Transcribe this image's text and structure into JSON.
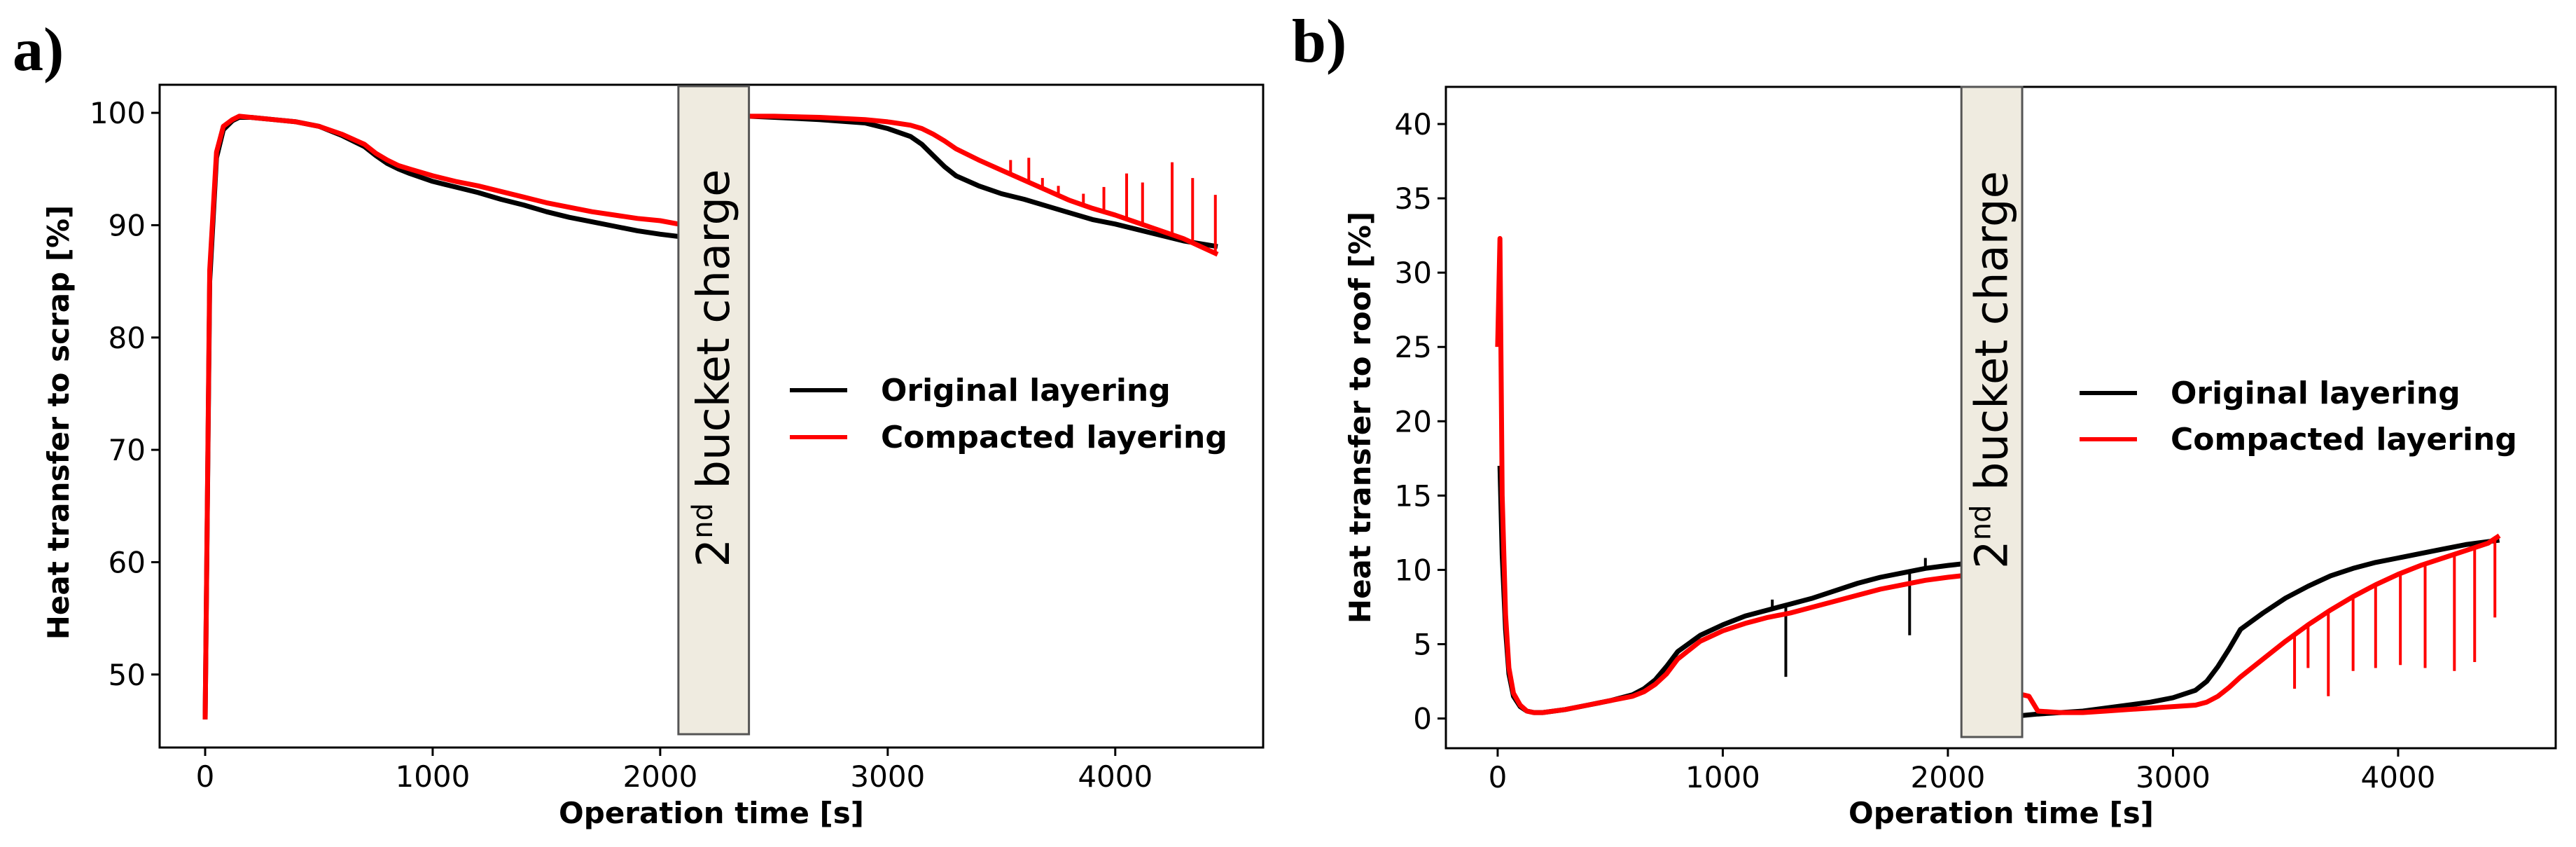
{
  "colors": {
    "original": "#000000",
    "compacted": "#ff0000",
    "bucket_fill": "#efebe0",
    "bucket_stroke": "#555555"
  },
  "chart_data": [
    {
      "type": "line",
      "panel_label": "a)",
      "xlabel": "Operation time [s]",
      "ylabel": "Heat transfer to scrap [%]",
      "xlim": [
        -200,
        4650
      ],
      "ylim": [
        43.5,
        102.5
      ],
      "xticks": [
        0,
        1000,
        2000,
        3000,
        4000
      ],
      "yticks": [
        50,
        60,
        70,
        80,
        90,
        100
      ],
      "legend_position": "center-right",
      "annotation": {
        "main": "2",
        "sup": "nd",
        "rest": " bucket charge",
        "x_range": [
          2080,
          2390
        ]
      },
      "series": [
        {
          "name": "Original layering",
          "color_key": "original",
          "segments": [
            {
              "x": [
                0,
                20,
                50,
                80,
                120,
                150,
                200,
                300,
                400,
                500,
                600,
                700,
                750,
                800,
                850,
                900,
                1000,
                1100,
                1200,
                1300,
                1400,
                1500,
                1600,
                1700,
                1800,
                1900,
                2000,
                2080
              ],
              "y": [
                46,
                85,
                96,
                98.5,
                99.3,
                99.6,
                99.6,
                99.4,
                99.2,
                98.8,
                98,
                97,
                96.2,
                95.5,
                95,
                94.6,
                93.9,
                93.4,
                92.9,
                92.3,
                91.8,
                91.2,
                90.7,
                90.3,
                89.9,
                89.5,
                89.2,
                89
              ]
            },
            {
              "x": [
                2390,
                2500,
                2700,
                2900,
                3000,
                3100,
                3150,
                3200,
                3250,
                3300,
                3400,
                3500,
                3600,
                3700,
                3800,
                3900,
                4000,
                4100,
                4200,
                4300,
                4450
              ],
              "y": [
                99.7,
                99.6,
                99.4,
                99.1,
                98.6,
                97.9,
                97.2,
                96.2,
                95.2,
                94.4,
                93.5,
                92.8,
                92.3,
                91.7,
                91.1,
                90.5,
                90.1,
                89.6,
                89.1,
                88.6,
                88.1
              ]
            }
          ]
        },
        {
          "name": "Compacted layering",
          "color_key": "compacted",
          "segments": [
            {
              "x": [
                0,
                20,
                50,
                80,
                120,
                150,
                200,
                300,
                400,
                500,
                600,
                700,
                750,
                800,
                850,
                900,
                1000,
                1100,
                1200,
                1300,
                1400,
                1500,
                1600,
                1700,
                1800,
                1900,
                2000,
                2080
              ],
              "y": [
                46,
                86,
                96.5,
                98.8,
                99.4,
                99.7,
                99.6,
                99.4,
                99.2,
                98.8,
                98.1,
                97.2,
                96.4,
                95.8,
                95.3,
                95,
                94.4,
                93.9,
                93.5,
                93,
                92.5,
                92,
                91.6,
                91.2,
                90.9,
                90.6,
                90.4,
                90.1
              ]
            },
            {
              "x": [
                2390,
                2500,
                2700,
                2900,
                3000,
                3100,
                3150,
                3200,
                3250,
                3300,
                3400,
                3500,
                3600,
                3700,
                3800,
                3900,
                4000,
                4100,
                4200,
                4300,
                4450
              ],
              "y": [
                99.7,
                99.7,
                99.6,
                99.4,
                99.2,
                98.9,
                98.6,
                98.1,
                97.5,
                96.8,
                95.8,
                94.9,
                94,
                93.1,
                92.2,
                91.5,
                90.9,
                90.2,
                89.5,
                88.8,
                87.4
              ]
            }
          ],
          "spikes": [
            [
              3540,
              95.8
            ],
            [
              3620,
              96
            ],
            [
              3680,
              94.2
            ],
            [
              3750,
              93.5
            ],
            [
              3860,
              92.8
            ],
            [
              3950,
              93.4
            ],
            [
              4050,
              94.6
            ],
            [
              4120,
              93.8
            ],
            [
              4250,
              95.6
            ],
            [
              4340,
              94.2
            ],
            [
              4440,
              92.7
            ]
          ]
        }
      ]
    },
    {
      "type": "line",
      "panel_label": "b)",
      "xlabel": "Operation time [s]",
      "ylabel": "Heat transfer to roof [%]",
      "xlim": [
        -230,
        4700
      ],
      "ylim": [
        -2,
        42.5
      ],
      "xticks": [
        0,
        1000,
        2000,
        3000,
        4000
      ],
      "yticks": [
        0,
        5,
        10,
        15,
        20,
        25,
        30,
        35,
        40
      ],
      "legend_position": "center-right",
      "annotation": {
        "main": "2",
        "sup": "nd",
        "rest": " bucket charge",
        "x_range": [
          2060,
          2330
        ]
      },
      "series": [
        {
          "name": "Original layering",
          "color_key": "original",
          "segments": [
            {
              "x": [
                10,
                20,
                35,
                50,
                70,
                100,
                130,
                160,
                200,
                300,
                400,
                500,
                600,
                650,
                700,
                750,
                800,
                900,
                1000,
                1100,
                1200,
                1300,
                1400,
                1500,
                1600,
                1700,
                1800,
                1900,
                2000,
                2060
              ],
              "y": [
                17,
                11,
                6,
                3,
                1.5,
                0.8,
                0.5,
                0.4,
                0.4,
                0.6,
                0.9,
                1.2,
                1.6,
                2,
                2.6,
                3.5,
                4.5,
                5.6,
                6.3,
                6.9,
                7.3,
                7.7,
                8.1,
                8.6,
                9.1,
                9.5,
                9.8,
                10.1,
                10.3,
                10.4
              ]
            },
            {
              "x": [
                2330,
                2400,
                2500,
                2600,
                2700,
                2800,
                2900,
                3000,
                3100,
                3150,
                3200,
                3250,
                3300,
                3400,
                3500,
                3600,
                3700,
                3800,
                3900,
                4000,
                4100,
                4200,
                4300,
                4400,
                4450
              ],
              "y": [
                0.2,
                0.3,
                0.4,
                0.5,
                0.7,
                0.9,
                1.1,
                1.4,
                1.9,
                2.5,
                3.5,
                4.7,
                6,
                7.1,
                8.1,
                8.9,
                9.6,
                10.1,
                10.5,
                10.8,
                11.1,
                11.4,
                11.7,
                11.9,
                12
              ]
            }
          ],
          "spikes": [
            [
              1280,
              2.8
            ],
            [
              1220,
              8
            ],
            [
              1830,
              5.6
            ],
            [
              1900,
              10.8
            ]
          ]
        },
        {
          "name": "Compacted layering",
          "color_key": "compacted",
          "segments": [
            {
              "x": [
                0,
                10,
                20,
                35,
                50,
                70,
                100,
                130,
                160,
                200,
                300,
                400,
                500,
                600,
                650,
                700,
                750,
                800,
                900,
                1000,
                1100,
                1200,
                1300,
                1400,
                1500,
                1600,
                1700,
                1800,
                1900,
                2000,
                2060
              ],
              "y": [
                25,
                32.3,
                15,
                7,
                3.4,
                1.7,
                0.9,
                0.5,
                0.4,
                0.4,
                0.6,
                0.9,
                1.2,
                1.5,
                1.8,
                2.3,
                3,
                4,
                5.2,
                5.9,
                6.4,
                6.8,
                7.1,
                7.5,
                7.9,
                8.3,
                8.7,
                9,
                9.3,
                9.5,
                9.6
              ]
            },
            {
              "x": [
                2330,
                2360,
                2400,
                2500,
                2600,
                2700,
                2800,
                2900,
                3000,
                3100,
                3150,
                3200,
                3250,
                3300,
                3400,
                3500,
                3600,
                3700,
                3800,
                3900,
                4000,
                4100,
                4200,
                4300,
                4400,
                4450
              ],
              "y": [
                1.6,
                1.5,
                0.5,
                0.4,
                0.4,
                0.5,
                0.6,
                0.7,
                0.8,
                0.9,
                1.1,
                1.5,
                2.1,
                2.8,
                4,
                5.2,
                6.3,
                7.3,
                8.2,
                9,
                9.7,
                10.3,
                10.8,
                11.3,
                11.8,
                12.3
              ]
            }
          ],
          "spikes": [
            [
              3540,
              2
            ],
            [
              3600,
              3.4
            ],
            [
              3690,
              1.5
            ],
            [
              3800,
              3.2
            ],
            [
              3900,
              3.4
            ],
            [
              4010,
              3.6
            ],
            [
              4120,
              3.4
            ],
            [
              4250,
              3.2
            ],
            [
              4340,
              3.8
            ],
            [
              4430,
              6.8
            ]
          ]
        }
      ]
    }
  ]
}
